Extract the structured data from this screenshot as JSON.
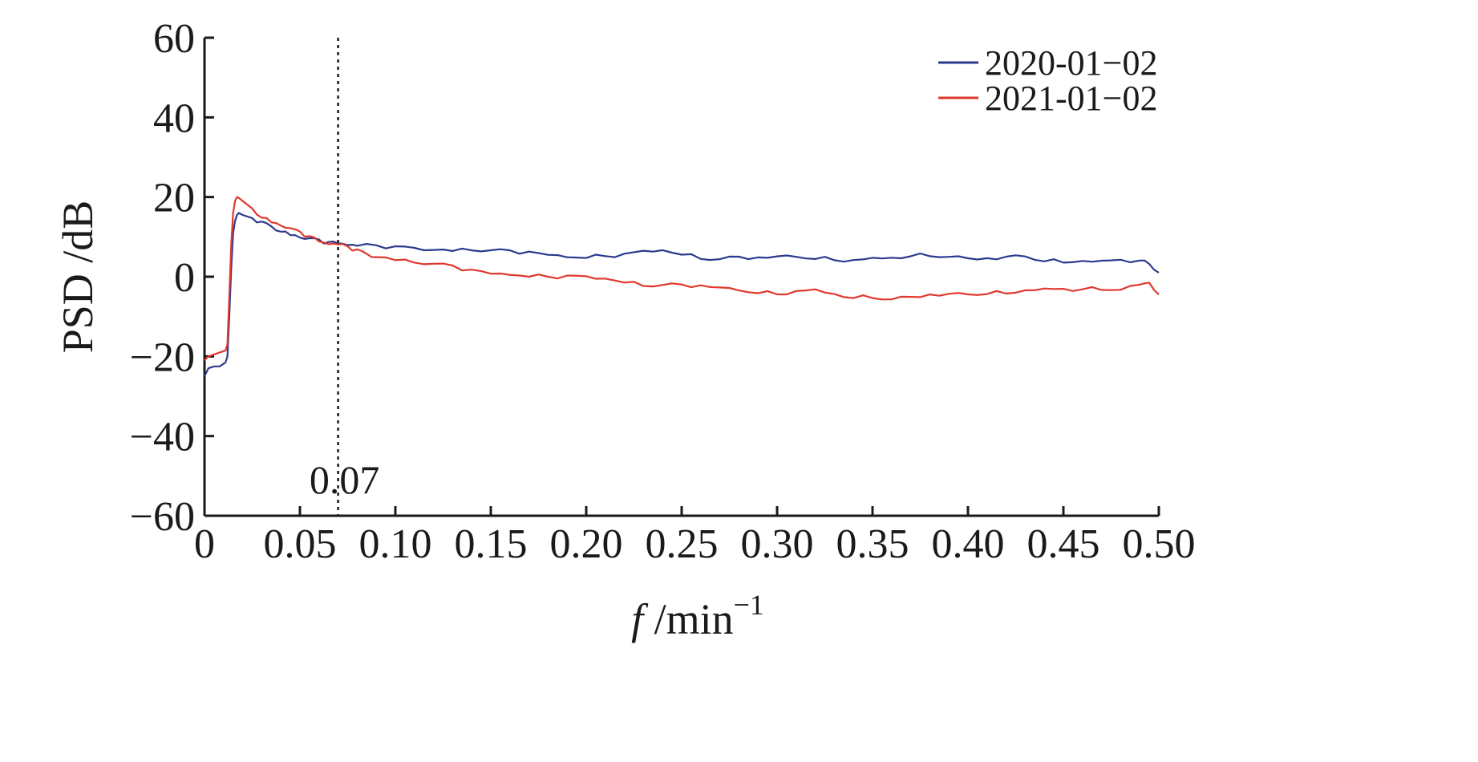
{
  "chart_data": {
    "type": "line",
    "title": "",
    "xlabel_italic": "f",
    "xlabel_rest": " /min",
    "xlabel_sup": "−1",
    "ylabel": "PSD /dB",
    "xlim": [
      0,
      0.5
    ],
    "ylim": [
      -60,
      60
    ],
    "grid": false,
    "legend_position": "top-right",
    "x_ticks": [
      0,
      0.05,
      0.1,
      0.15,
      0.2,
      0.25,
      0.3,
      0.35,
      0.4,
      0.45,
      0.5
    ],
    "x_tick_labels": [
      "0",
      "0.05",
      "0.10",
      "0.15",
      "0.20",
      "0.25",
      "0.30",
      "0.35",
      "0.40",
      "0.45",
      "0.50"
    ],
    "y_ticks": [
      60,
      40,
      20,
      0,
      -20,
      -40,
      -60
    ],
    "y_tick_labels": [
      "60",
      "40",
      "20",
      "0",
      "−20",
      "−40",
      "−60"
    ],
    "annotations": [
      {
        "type": "vline",
        "x": 0.07,
        "style": "dotted",
        "label": "0.07"
      }
    ],
    "series": [
      {
        "name": "2020-01−02",
        "color": "#2b3a8c",
        "points": [
          [
            0.0,
            -25
          ],
          [
            0.002,
            -23
          ],
          [
            0.005,
            -22.5
          ],
          [
            0.008,
            -22.5
          ],
          [
            0.011,
            -21.5
          ],
          [
            0.012,
            -20
          ],
          [
            0.013,
            -10
          ],
          [
            0.014,
            2
          ],
          [
            0.015,
            11
          ],
          [
            0.016,
            14
          ],
          [
            0.017,
            15.5
          ],
          [
            0.018,
            16
          ],
          [
            0.02,
            15.5
          ],
          [
            0.025,
            14.5
          ],
          [
            0.03,
            13.5
          ],
          [
            0.035,
            12.5
          ],
          [
            0.04,
            11.5
          ],
          [
            0.045,
            10.8
          ],
          [
            0.05,
            10
          ],
          [
            0.055,
            9.5
          ],
          [
            0.06,
            9
          ],
          [
            0.065,
            8.5
          ],
          [
            0.07,
            8.5
          ],
          [
            0.075,
            8.3
          ],
          [
            0.08,
            8
          ],
          [
            0.09,
            7.8
          ],
          [
            0.1,
            7.3
          ],
          [
            0.11,
            7
          ],
          [
            0.12,
            6.8
          ],
          [
            0.13,
            6.8
          ],
          [
            0.14,
            6.9
          ],
          [
            0.15,
            6.6
          ],
          [
            0.16,
            6.3
          ],
          [
            0.17,
            6.0
          ],
          [
            0.18,
            5.5
          ],
          [
            0.19,
            5.2
          ],
          [
            0.2,
            5.0
          ],
          [
            0.21,
            5.2
          ],
          [
            0.22,
            5.5
          ],
          [
            0.23,
            6.2
          ],
          [
            0.24,
            6.6
          ],
          [
            0.25,
            5.8
          ],
          [
            0.26,
            4.8
          ],
          [
            0.27,
            4.5
          ],
          [
            0.28,
            4.8
          ],
          [
            0.29,
            4.5
          ],
          [
            0.3,
            5.0
          ],
          [
            0.31,
            5.2
          ],
          [
            0.32,
            4.8
          ],
          [
            0.33,
            4.3
          ],
          [
            0.34,
            4.0
          ],
          [
            0.35,
            4.4
          ],
          [
            0.36,
            4.6
          ],
          [
            0.37,
            5.3
          ],
          [
            0.38,
            5.5
          ],
          [
            0.39,
            5.2
          ],
          [
            0.4,
            4.5
          ],
          [
            0.41,
            4.3
          ],
          [
            0.42,
            4.8
          ],
          [
            0.43,
            5.2
          ],
          [
            0.44,
            4.2
          ],
          [
            0.45,
            3.8
          ],
          [
            0.46,
            3.9
          ],
          [
            0.47,
            3.7
          ],
          [
            0.48,
            4.0
          ],
          [
            0.49,
            4.1
          ],
          [
            0.495,
            3.2
          ],
          [
            0.5,
            1.0
          ]
        ]
      },
      {
        "name": "2021-01−02",
        "color": "#e0382e",
        "points": [
          [
            0.0,
            -21
          ],
          [
            0.002,
            -20
          ],
          [
            0.005,
            -19.5
          ],
          [
            0.008,
            -19
          ],
          [
            0.011,
            -18.5
          ],
          [
            0.012,
            -17
          ],
          [
            0.013,
            -5
          ],
          [
            0.014,
            8
          ],
          [
            0.015,
            16
          ],
          [
            0.016,
            19
          ],
          [
            0.017,
            20
          ],
          [
            0.018,
            19.8
          ],
          [
            0.02,
            19
          ],
          [
            0.025,
            17
          ],
          [
            0.03,
            15
          ],
          [
            0.035,
            14
          ],
          [
            0.04,
            13
          ],
          [
            0.045,
            12
          ],
          [
            0.05,
            11
          ],
          [
            0.055,
            10
          ],
          [
            0.06,
            9
          ],
          [
            0.065,
            8.5
          ],
          [
            0.07,
            8.3
          ],
          [
            0.075,
            7.5
          ],
          [
            0.08,
            6.5
          ],
          [
            0.085,
            5.5
          ],
          [
            0.09,
            5.0
          ],
          [
            0.1,
            4.5
          ],
          [
            0.11,
            3.8
          ],
          [
            0.12,
            3.2
          ],
          [
            0.13,
            2.5
          ],
          [
            0.14,
            1.5
          ],
          [
            0.15,
            0.8
          ],
          [
            0.16,
            0.8
          ],
          [
            0.17,
            0.3
          ],
          [
            0.18,
            0.0
          ],
          [
            0.19,
            0.0
          ],
          [
            0.2,
            -0.2
          ],
          [
            0.21,
            -0.5
          ],
          [
            0.22,
            -1.2
          ],
          [
            0.23,
            -2.0
          ],
          [
            0.24,
            -2.0
          ],
          [
            0.25,
            -2.2
          ],
          [
            0.26,
            -2.5
          ],
          [
            0.27,
            -2.8
          ],
          [
            0.28,
            -3.2
          ],
          [
            0.29,
            -3.8
          ],
          [
            0.3,
            -4.3
          ],
          [
            0.31,
            -3.8
          ],
          [
            0.32,
            -3.5
          ],
          [
            0.33,
            -4.5
          ],
          [
            0.34,
            -5.2
          ],
          [
            0.35,
            -5.0
          ],
          [
            0.36,
            -5.5
          ],
          [
            0.37,
            -5.2
          ],
          [
            0.38,
            -4.8
          ],
          [
            0.39,
            -4.5
          ],
          [
            0.4,
            -4.3
          ],
          [
            0.41,
            -4.0
          ],
          [
            0.42,
            -4.0
          ],
          [
            0.43,
            -3.5
          ],
          [
            0.44,
            -3.3
          ],
          [
            0.45,
            -3.3
          ],
          [
            0.46,
            -3.1
          ],
          [
            0.47,
            -3.0
          ],
          [
            0.48,
            -3.0
          ],
          [
            0.49,
            -2.0
          ],
          [
            0.495,
            -1.5
          ],
          [
            0.5,
            -4.5
          ]
        ]
      }
    ]
  }
}
